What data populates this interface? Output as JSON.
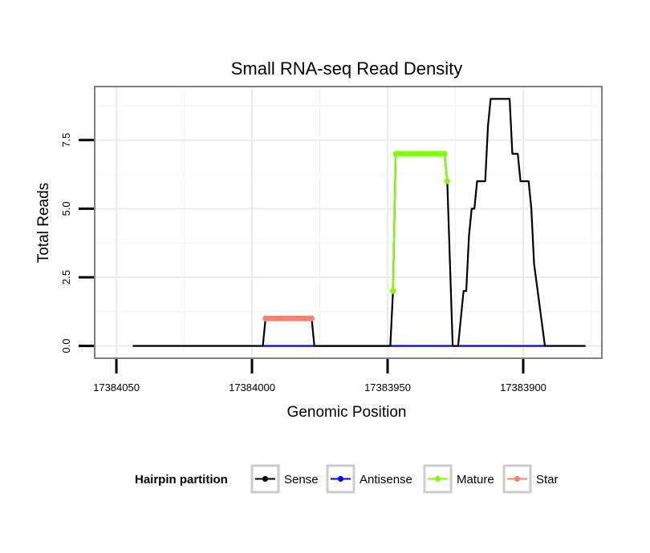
{
  "chart_data": {
    "type": "line",
    "title": "Small RNA-seq Read Density",
    "xlabel": "Genomic Position",
    "ylabel": "Total Reads",
    "xlim": [
      17384058,
      17383871
    ],
    "ylim": [
      -0.45,
      9.45
    ],
    "x_reversed": true,
    "x_ticks": [
      17384050,
      17384000,
      17383950,
      17383900
    ],
    "x_tick_labels": [
      "17384050",
      "17384000",
      "17383950",
      "17383900"
    ],
    "y_ticks": [
      0,
      2.5,
      5,
      7.5
    ],
    "y_tick_labels": [
      "0.0",
      "2.5",
      "5.0",
      "7.5"
    ],
    "grid": true,
    "legend": {
      "title": "Hairpin partition",
      "position": "bottom",
      "entries": [
        {
          "label": "Sense",
          "color": "#000000"
        },
        {
          "label": "Antisense",
          "color": "#0000ff"
        },
        {
          "label": "Mature",
          "color": "#7fff00"
        },
        {
          "label": "Star",
          "color": "#fa8072"
        }
      ]
    },
    "series": [
      {
        "name": "Sense",
        "color": "#000000",
        "points": [
          [
            17384044,
            0
          ],
          [
            17383996,
            0
          ],
          [
            17383995,
            1
          ],
          [
            17383978,
            1
          ],
          [
            17383977,
            0
          ],
          [
            17383949,
            0
          ],
          [
            17383948,
            2
          ],
          [
            17383947,
            7
          ],
          [
            17383929,
            7
          ],
          [
            17383928,
            6
          ],
          [
            17383926,
            0
          ],
          [
            17383924,
            0
          ],
          [
            17383922,
            2
          ],
          [
            17383921,
            2
          ],
          [
            17383920,
            4
          ],
          [
            17383919,
            5
          ],
          [
            17383918,
            5
          ],
          [
            17383917,
            6
          ],
          [
            17383914,
            6
          ],
          [
            17383913,
            8
          ],
          [
            17383912,
            9
          ],
          [
            17383905,
            9
          ],
          [
            17383904,
            7
          ],
          [
            17383902,
            7
          ],
          [
            17383901,
            6
          ],
          [
            17383898,
            6
          ],
          [
            17383897,
            5
          ],
          [
            17383896,
            3
          ],
          [
            17383892,
            0
          ],
          [
            17383877,
            0
          ]
        ]
      },
      {
        "name": "Antisense",
        "color": "#0000ff",
        "points": [
          [
            17383996,
            0
          ],
          [
            17383892,
            0
          ]
        ]
      },
      {
        "name": "Mature",
        "color": "#7fff00",
        "points": [
          [
            17383948,
            2
          ],
          [
            17383947,
            7
          ],
          [
            17383946,
            7
          ],
          [
            17383945,
            7
          ],
          [
            17383944,
            7
          ],
          [
            17383943,
            7
          ],
          [
            17383942,
            7
          ],
          [
            17383941,
            7
          ],
          [
            17383940,
            7
          ],
          [
            17383939,
            7
          ],
          [
            17383938,
            7
          ],
          [
            17383937,
            7
          ],
          [
            17383936,
            7
          ],
          [
            17383935,
            7
          ],
          [
            17383934,
            7
          ],
          [
            17383933,
            7
          ],
          [
            17383932,
            7
          ],
          [
            17383931,
            7
          ],
          [
            17383930,
            7
          ],
          [
            17383929,
            7
          ],
          [
            17383928,
            6
          ]
        ]
      },
      {
        "name": "Star",
        "color": "#fa8072",
        "points": [
          [
            17383995,
            1
          ],
          [
            17383994,
            1
          ],
          [
            17383993,
            1
          ],
          [
            17383992,
            1
          ],
          [
            17383991,
            1
          ],
          [
            17383990,
            1
          ],
          [
            17383989,
            1
          ],
          [
            17383988,
            1
          ],
          [
            17383987,
            1
          ],
          [
            17383986,
            1
          ],
          [
            17383985,
            1
          ],
          [
            17383984,
            1
          ],
          [
            17383983,
            1
          ],
          [
            17383982,
            1
          ],
          [
            17383981,
            1
          ],
          [
            17383980,
            1
          ],
          [
            17383979,
            1
          ],
          [
            17383978,
            1
          ]
        ]
      }
    ]
  }
}
